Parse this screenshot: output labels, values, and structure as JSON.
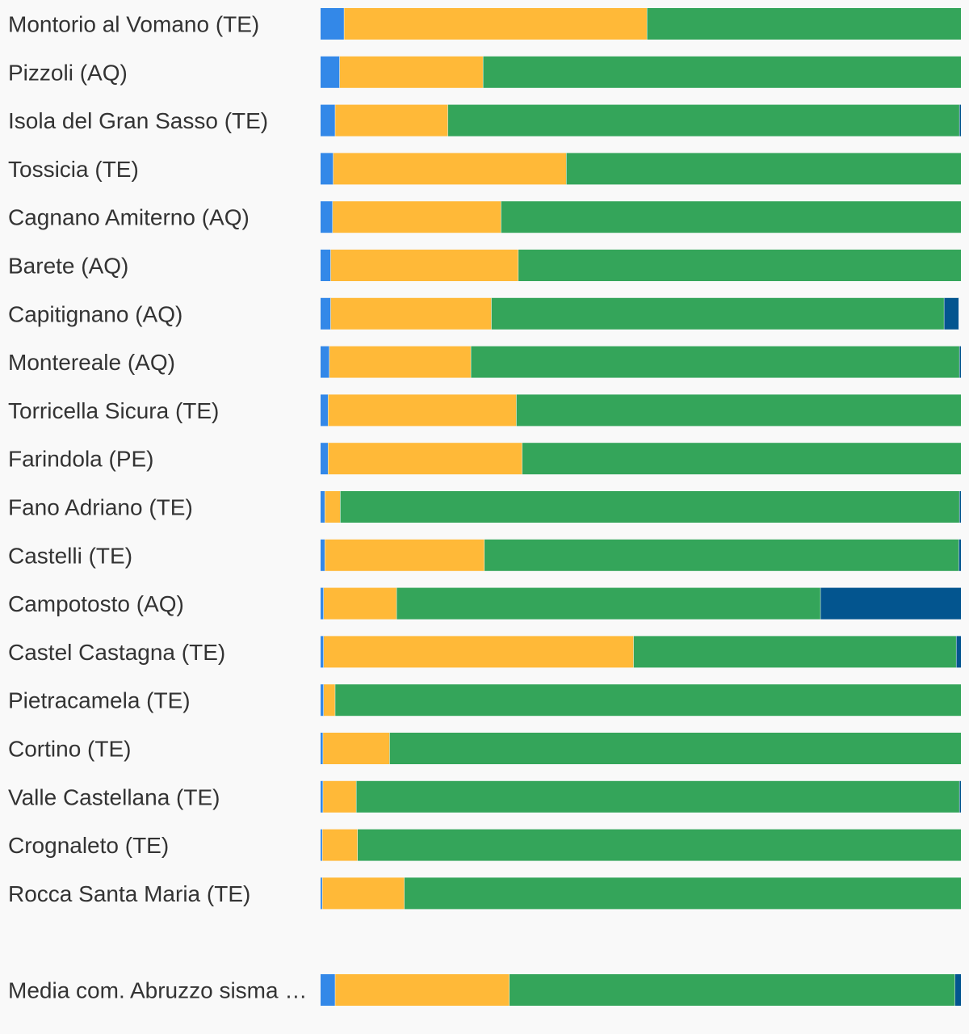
{
  "chart_data": {
    "type": "bar",
    "orientation": "horizontal",
    "stacked": true,
    "normalized": true,
    "title": "",
    "xlabel": "",
    "ylabel": "",
    "xlim": [
      0,
      100
    ],
    "grid": false,
    "legend": "none",
    "categories": [
      "Montorio al Vomano (TE)",
      "Pizzoli (AQ)",
      "Isola del Gran Sasso (TE)",
      "Tossicia (TE)",
      "Cagnano Amiterno (AQ)",
      "Barete (AQ)",
      "Capitignano (AQ)",
      "Montereale (AQ)",
      "Torricella Sicura (TE)",
      "Farindola (PE)",
      "Fano Adriano (TE)",
      "Castelli (TE)",
      "Campotosto (AQ)",
      "Castel Castagna (TE)",
      "Pietracamela (TE)",
      "Cortino (TE)",
      "Valle Castellana (TE)",
      "Crognaleto (TE)",
      "Rocca Santa Maria (TE)",
      "",
      "Media com. Abruzzo sisma …"
    ],
    "series": [
      {
        "color": "#3388e8",
        "values": [
          3.7,
          3.0,
          2.3,
          2.0,
          1.9,
          1.6,
          1.6,
          1.4,
          1.2,
          1.2,
          0.7,
          0.7,
          0.5,
          0.5,
          0.5,
          0.4,
          0.4,
          0.3,
          0.3,
          null,
          2.3
        ]
      },
      {
        "color": "#ffb938",
        "values": [
          47.3,
          22.4,
          17.6,
          36.4,
          26.3,
          29.3,
          25.1,
          22.1,
          29.4,
          30.3,
          2.4,
          24.9,
          11.4,
          48.4,
          1.8,
          10.4,
          5.2,
          5.5,
          12.8,
          null,
          27.2
        ]
      },
      {
        "color": "#34a55a",
        "values": [
          49.0,
          74.6,
          79.9,
          61.6,
          71.8,
          69.1,
          70.7,
          76.3,
          69.4,
          68.5,
          96.7,
          74.1,
          66.2,
          50.4,
          97.7,
          89.2,
          94.2,
          94.2,
          86.9,
          null,
          69.6
        ]
      },
      {
        "color": "#03558f",
        "values": [
          0.0,
          0.0,
          0.2,
          0.0,
          0.0,
          0.0,
          2.3,
          0.2,
          0.0,
          0.0,
          0.2,
          0.3,
          21.9,
          0.7,
          0.0,
          0.0,
          0.2,
          0.0,
          0.0,
          null,
          0.9
        ]
      }
    ]
  }
}
